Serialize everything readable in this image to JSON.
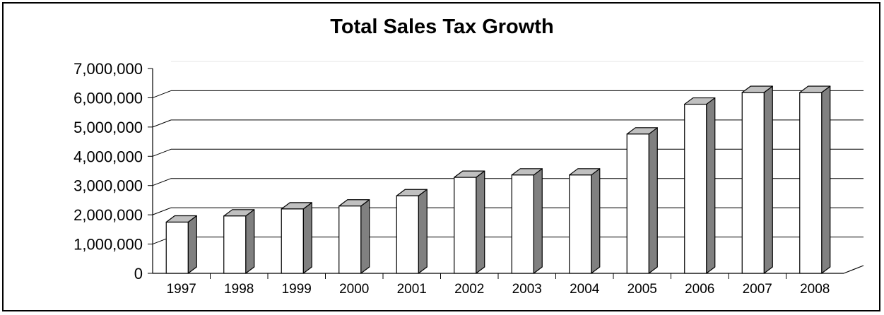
{
  "chart_data": {
    "type": "bar",
    "title": "Total Sales Tax Growth",
    "xlabel": "",
    "ylabel": "",
    "categories": [
      "1997",
      "1998",
      "1999",
      "2000",
      "2001",
      "2002",
      "2003",
      "2004",
      "2005",
      "2006",
      "2007",
      "2008"
    ],
    "values": [
      1750000,
      1960000,
      2200000,
      2300000,
      2650000,
      3280000,
      3360000,
      3360000,
      4760000,
      5780000,
      6180000,
      6180000
    ],
    "ylim": [
      0,
      7000000
    ],
    "yticks": [
      "0",
      "1,000,000",
      "2,000,000",
      "3,000,000",
      "4,000,000",
      "5,000,000",
      "6,000,000",
      "7,000,000"
    ],
    "grid": true,
    "legend": "none",
    "colors": {
      "bar_face": "#ffffff",
      "bar_side": "#808080",
      "bar_top": "#c0c0c0",
      "outline": "#000000",
      "grid": "#000000"
    }
  }
}
